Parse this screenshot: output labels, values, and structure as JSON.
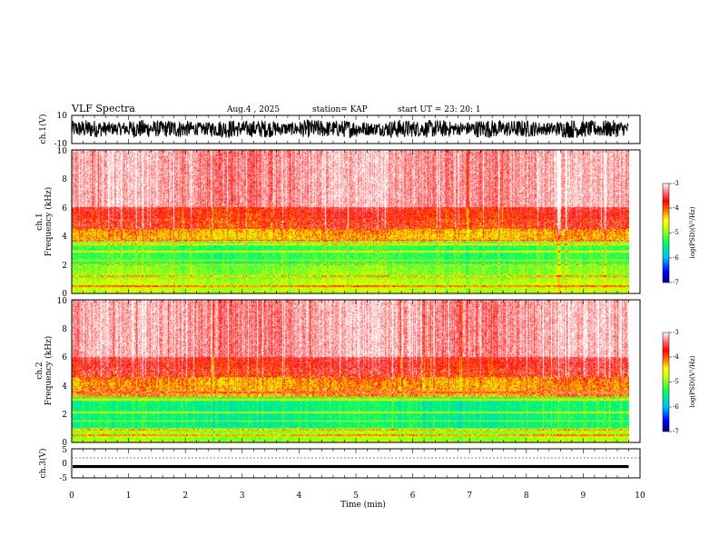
{
  "header": {
    "title": "VLF Spectra",
    "date": "Aug.4 , 2025",
    "station": "station= KAP",
    "start": "start UT = 23: 20: 1"
  },
  "colorbar": {
    "label": "log(PSD)(V²/Hz)",
    "ticks": [
      "-3",
      "-4",
      "-5",
      "-6",
      "-7"
    ],
    "colors": [
      "#000080",
      "#0000ff",
      "#00c0ff",
      "#00ff60",
      "#c8ff00",
      "#ffff00",
      "#ff8000",
      "#ff0000",
      "#ff8080",
      "#ffffff"
    ]
  },
  "chart_data": [
    {
      "type": "line",
      "panel": "ch1-waveform",
      "ylabel": "ch.1(V)",
      "ylim": [
        -10,
        10
      ],
      "yticks": [
        "10",
        "-10"
      ],
      "xlim": [
        0,
        10
      ],
      "note": "dense oscillating waveform spanning roughly -6 to +8 V"
    },
    {
      "type": "heatmap",
      "panel": "ch1-spectrogram",
      "ylabel_top": "ch.1",
      "ylabel": "Frequency (kHz)",
      "ylim": [
        0,
        10
      ],
      "yticks": [
        "0",
        "2",
        "4",
        "6",
        "8",
        "10"
      ],
      "xlim": [
        0,
        9.8
      ],
      "color_range": [
        -7,
        -3
      ],
      "bands_khz": [
        0.5,
        1.2,
        2.0,
        2.3,
        2.9,
        3.4,
        3.7
      ],
      "profile": [
        {
          "from_khz": 0.0,
          "to_khz": 1.0,
          "level": -4.8
        },
        {
          "from_khz": 1.0,
          "to_khz": 2.0,
          "level": -5.0
        },
        {
          "from_khz": 2.0,
          "to_khz": 3.6,
          "level": -5.3
        },
        {
          "from_khz": 3.6,
          "to_khz": 4.5,
          "level": -4.3
        },
        {
          "from_khz": 4.5,
          "to_khz": 6.0,
          "level": -3.8
        },
        {
          "from_khz": 6.0,
          "to_khz": 10.0,
          "level": -3.3
        }
      ]
    },
    {
      "type": "heatmap",
      "panel": "ch2-spectrogram",
      "ylabel_top": "ch.2",
      "ylabel": "Frequency (kHz)",
      "ylim": [
        0,
        10
      ],
      "yticks": [
        "0",
        "2",
        "4",
        "6",
        "8",
        "10"
      ],
      "xlim": [
        0,
        9.8
      ],
      "color_range": [
        -7,
        -3
      ],
      "bands_khz": [
        0.5,
        0.9,
        1.5,
        2.1,
        3.0,
        3.5
      ],
      "profile": [
        {
          "from_khz": 0.0,
          "to_khz": 1.0,
          "level": -4.9
        },
        {
          "from_khz": 1.0,
          "to_khz": 3.2,
          "level": -5.5
        },
        {
          "from_khz": 3.2,
          "to_khz": 4.6,
          "level": -4.2
        },
        {
          "from_khz": 4.6,
          "to_khz": 6.0,
          "level": -3.7
        },
        {
          "from_khz": 6.0,
          "to_khz": 10.0,
          "level": -3.3
        }
      ]
    },
    {
      "type": "line",
      "panel": "ch3-waveform",
      "ylabel": "ch.3(V)",
      "ylim": [
        -5,
        5
      ],
      "yticks": [
        "5",
        "0",
        "-5"
      ],
      "xlim": [
        0,
        10
      ],
      "note": "narrow band of values near -1 V"
    }
  ],
  "xaxis": {
    "label": "Time (min)",
    "ticks": [
      "0",
      "1",
      "2",
      "3",
      "4",
      "5",
      "6",
      "7",
      "8",
      "9",
      "10"
    ]
  }
}
